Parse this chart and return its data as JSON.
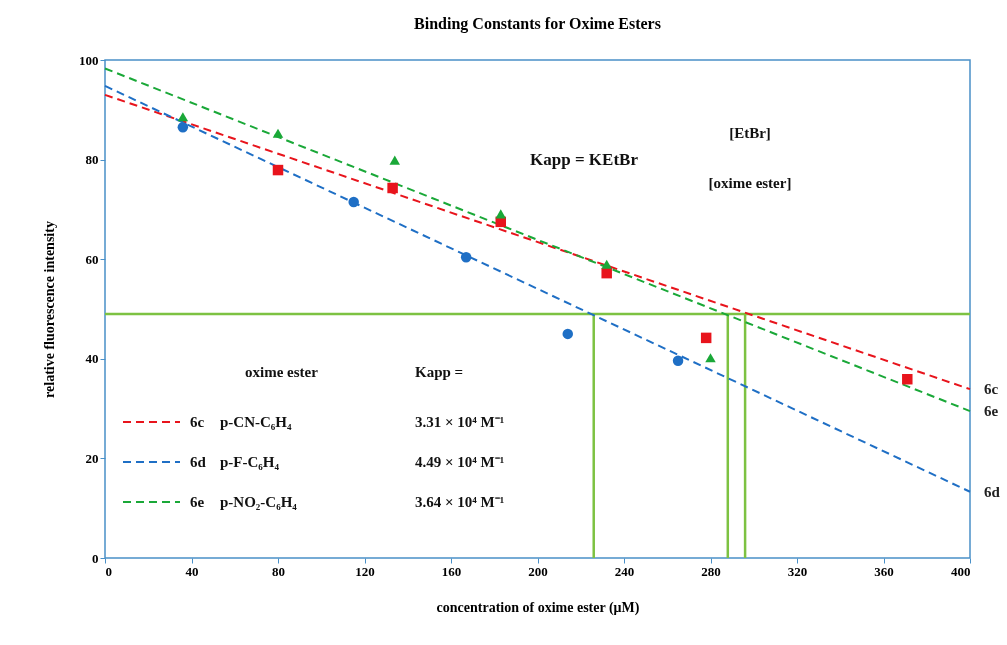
{
  "chart_data": {
    "type": "scatter",
    "title": "Binding Constants for Oxime Esters",
    "xlabel": "concentration of oxime ester (μM)",
    "ylabel": "relative fluorescence intensity",
    "xlim": [
      0,
      400
    ],
    "ylim": [
      0,
      100
    ],
    "xticks": [
      0,
      40,
      80,
      120,
      160,
      200,
      240,
      280,
      320,
      360,
      400
    ],
    "yticks": [
      0,
      20,
      40,
      60,
      80,
      100
    ],
    "grid": false,
    "legend": "bottom left",
    "series": [
      {
        "name": "6c",
        "type": "line",
        "color": "#e8141c",
        "line_style": "dashed",
        "x": [
          0,
          400
        ],
        "values": [
          93,
          33.9
        ]
      },
      {
        "name": "6d",
        "type": "line",
        "color": "#1f6fc5",
        "line_style": "dashed",
        "x": [
          0,
          400
        ],
        "values": [
          94.8,
          13.3
        ]
      },
      {
        "name": "6e",
        "type": "line",
        "color": "#1aa838",
        "line_style": "dashed",
        "x": [
          0,
          400
        ],
        "values": [
          98.3,
          29.5
        ]
      },
      {
        "color": "#e8141c",
        "marker": "square",
        "x": [
          80,
          133,
          183,
          232,
          278,
          371
        ],
        "values": [
          77.9,
          74.3,
          67.5,
          57.2,
          44.2,
          35.9
        ]
      },
      {
        "color": "#1f6fc5",
        "marker": "circle",
        "x": [
          36,
          115,
          167,
          214,
          265
        ],
        "values": [
          86.5,
          71.5,
          60.4,
          45,
          39.6
        ]
      },
      {
        "color": "#1aa838",
        "marker": "triangle",
        "x": [
          36,
          80,
          134,
          183,
          232,
          280
        ],
        "values": [
          88.6,
          85.3,
          79.9,
          69.1,
          59,
          40.2
        ]
      }
    ],
    "ref_lines": [
      {
        "axis": "y",
        "value": 49,
        "color": "#7dc242"
      },
      {
        "axis": "x",
        "value": 226,
        "color": "#7dc242"
      },
      {
        "axis": "x",
        "value": 288,
        "color": "#7dc242"
      },
      {
        "axis": "x",
        "value": 296,
        "color": "#7dc242"
      }
    ],
    "annotations": [
      "Kapp = KEtBr",
      "[EtBr]",
      "[oxime ester]",
      "oxime ester",
      "Kapp =",
      "p-CN-C₆H₄",
      "3.31 × 10⁴ M⁻¹",
      "p-F-C₆H₄",
      "4.49 × 10⁴ M⁻¹",
      "p-NO₂-C₆H₄",
      "3.64 × 10⁴ M⁻¹"
    ]
  }
}
